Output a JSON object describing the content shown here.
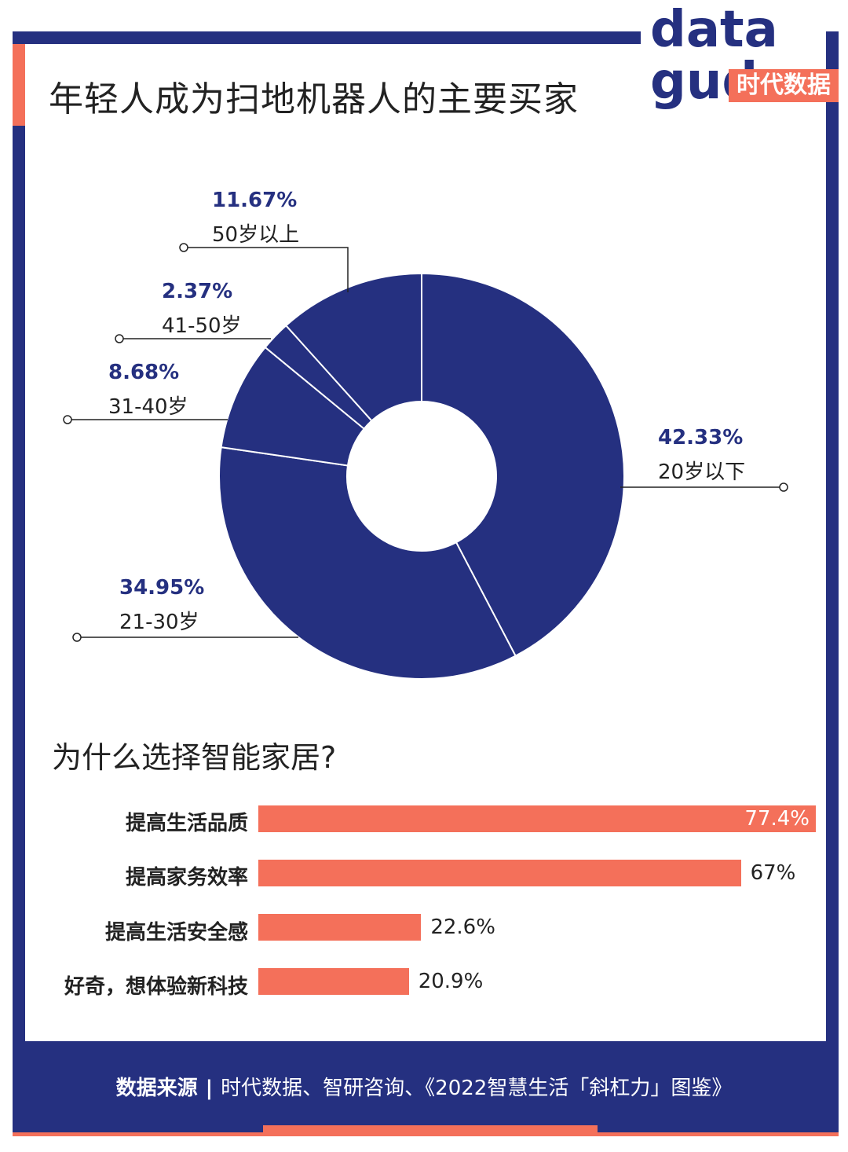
{
  "logo": {
    "line1": "data",
    "line2": "gud",
    "badge": "时代数据"
  },
  "title": "年轻人成为扫地机器人的主要买家",
  "chart_data": [
    {
      "type": "pie",
      "style": "donut",
      "title": "年轻人成为扫地机器人的主要买家",
      "slices": [
        {
          "label": "20岁以下",
          "value": 42.33,
          "display": "42.33%"
        },
        {
          "label": "21-30岁",
          "value": 34.95,
          "display": "34.95%"
        },
        {
          "label": "31-40岁",
          "value": 8.68,
          "display": "8.68%"
        },
        {
          "label": "41-50岁",
          "value": 2.37,
          "display": "2.37%"
        },
        {
          "label": "50岁以上",
          "value": 11.67,
          "display": "11.67%"
        }
      ],
      "color": "#253080"
    },
    {
      "type": "bar",
      "orientation": "horizontal",
      "title": "为什么选择智能家居?",
      "categories": [
        "提高生活品质",
        "提高家务效率",
        "提高生活安全感",
        "好奇，想体验新科技"
      ],
      "values": [
        77.4,
        67,
        22.6,
        20.9
      ],
      "display": [
        "77.4%",
        "67%",
        "22.6%",
        "20.9%"
      ],
      "color": "#f4705a"
    }
  ],
  "bar_section_title": "为什么选择智能家居?",
  "source": {
    "label": "数据来源",
    "separator": "|",
    "text": "时代数据、智研咨询、《2022智慧生活「斜杠力」图鉴》"
  },
  "colors": {
    "navy": "#253080",
    "coral": "#f4705a"
  }
}
